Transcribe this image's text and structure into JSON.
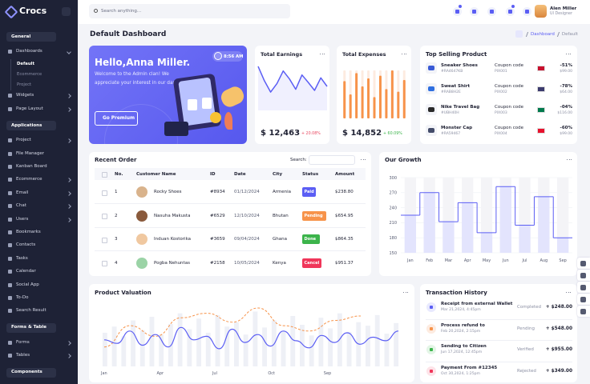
{
  "brand": "Crocs",
  "search_placeholder": "Search anything...",
  "user": {
    "name": "Alen Miller",
    "role": "UI Designer"
  },
  "sidebar": [
    {
      "heading": "General",
      "items": [
        {
          "label": "Dashboards",
          "sub": [
            "Default",
            "Ecommerce",
            "Project"
          ]
        },
        {
          "label": "Widgets",
          "arrow": true
        },
        {
          "label": "Page Layout",
          "arrow": true
        }
      ]
    },
    {
      "heading": "Applications",
      "items": [
        {
          "label": "Project",
          "arrow": true
        },
        {
          "label": "File Manager"
        },
        {
          "label": "Kanban Board"
        },
        {
          "label": "Ecommerce",
          "arrow": true
        },
        {
          "label": "Email",
          "arrow": true
        },
        {
          "label": "Chat",
          "arrow": true
        },
        {
          "label": "Users",
          "arrow": true
        },
        {
          "label": "Bookmarks"
        },
        {
          "label": "Contacts"
        },
        {
          "label": "Tasks"
        },
        {
          "label": "Calendar"
        },
        {
          "label": "Social App"
        },
        {
          "label": "To-Do"
        },
        {
          "label": "Search Result"
        }
      ]
    },
    {
      "heading": "Forms & Table",
      "items": [
        {
          "label": "Forms",
          "arrow": true
        },
        {
          "label": "Tables",
          "arrow": true
        }
      ]
    },
    {
      "heading": "Components",
      "items": []
    }
  ],
  "page_title": "Default Dashboard",
  "breadcrumb": [
    "Dashboard",
    "Default"
  ],
  "welcome": {
    "title": "Hello,Anna Miller.",
    "text": "Welcome to the Admin clan! We appreciate your interest in our dashboard.",
    "button": "Go Premium",
    "time": "8:56 AM"
  },
  "earnings": {
    "title": "Total Earnings",
    "amount": "$ 12,463",
    "change": "+ 20.08%",
    "values": [
      70,
      45,
      25,
      40,
      62,
      48,
      30,
      55,
      42,
      28,
      50,
      35
    ]
  },
  "expenses": {
    "title": "Total Expenses",
    "amount": "$ 14,852",
    "change": "+ 60.09%",
    "values": [
      70,
      45,
      85,
      60,
      75,
      40,
      80,
      55,
      90,
      50,
      72
    ]
  },
  "top_selling": {
    "title": "Top Selling Product",
    "coupon_label": "Coupon code",
    "products": [
      {
        "name": "Sneaker Shoes",
        "code": "#RA4647KB",
        "coupon": "PIX001",
        "discount": "-51%",
        "price": "$99.00"
      },
      {
        "name": "Sweat Shirt",
        "code": "#RAB8H2E",
        "coupon": "PIX002",
        "discount": "-78%",
        "price": "$64.00"
      },
      {
        "name": "Nike Travel Bag",
        "code": "#UBH40H",
        "coupon": "PIX003",
        "discount": "-04%",
        "price": "$116.00"
      },
      {
        "name": "Monster Cap",
        "code": "#RA59467",
        "coupon": "PIX004",
        "discount": "-60%",
        "price": "$99.00"
      }
    ]
  },
  "recent_order": {
    "title": "Recent Order",
    "search_label": "Search:",
    "columns": [
      "No.",
      "Customer Name",
      "ID",
      "Date",
      "City",
      "Status",
      "Amount"
    ],
    "rows": [
      [
        "1",
        "Rocky Shoes",
        "#8934",
        "01/12/2024",
        "Armenia",
        "Paid",
        "$238.80"
      ],
      [
        "2",
        "Nasuha Makusta",
        "#6529",
        "12/10/2024",
        "Bhutan",
        "Pending",
        "$654.95"
      ],
      [
        "3",
        "Induan Kostorika",
        "#3659",
        "09/04/2024",
        "Ghana",
        "Done",
        "$864.35"
      ],
      [
        "4",
        "Pogba Nehuntas",
        "#2158",
        "10/05/2024",
        "Kenya",
        "Cancel",
        "$951.37"
      ]
    ]
  },
  "growth": {
    "title": "Our Growth",
    "categories": [
      "Jan",
      "Feb",
      "Mar",
      "Apr",
      "May",
      "Jun",
      "Jul",
      "Aug",
      "Sep"
    ],
    "values": [
      225,
      270,
      212,
      250,
      190,
      282,
      205,
      262,
      180
    ],
    "ylim": [
      150,
      300
    ],
    "yticks": [
      150,
      180,
      210,
      240,
      270,
      300
    ],
    "color": "#5b5ef4"
  },
  "valuation": {
    "title": "Product Valuation",
    "categories": [
      "Jan",
      "Apr",
      "Jul",
      "Oct",
      "Sep"
    ],
    "line": [
      30,
      26,
      40,
      24,
      36,
      22,
      44,
      30,
      34,
      20,
      42,
      27,
      36,
      23,
      40,
      29,
      21,
      35,
      27,
      38,
      25,
      33,
      29,
      40
    ],
    "dashed": [
      22,
      46,
      34,
      55,
      60,
      50,
      66,
      46,
      40,
      52,
      57
    ],
    "bars": [
      38,
      45,
      34,
      52,
      41,
      56,
      36,
      48,
      60,
      42,
      54,
      38,
      58,
      45,
      50,
      36,
      62,
      44,
      52,
      40,
      57,
      47,
      35,
      55,
      43,
      60,
      39,
      50,
      46,
      58,
      37,
      49
    ]
  },
  "transactions": {
    "title": "Transaction History",
    "items": [
      {
        "title": "Receipt from external Wallet",
        "date": "Mar 21,2024, 4:45pm",
        "status": "Completed",
        "amount": "+ $248.00"
      },
      {
        "title": "Process refund to",
        "date": "Feb 20,2024, 2:15pm",
        "status": "Pending",
        "amount": "+ $548.00"
      },
      {
        "title": "Sending to Citizen",
        "date": "Jun 17,2024, 12:45pm",
        "status": "Verified",
        "amount": "+ $955.00"
      },
      {
        "title": "Payment From #12345",
        "date": "Oct 30,2024, 1:25pm",
        "status": "Rejected",
        "amount": "+ $349.00"
      }
    ]
  }
}
